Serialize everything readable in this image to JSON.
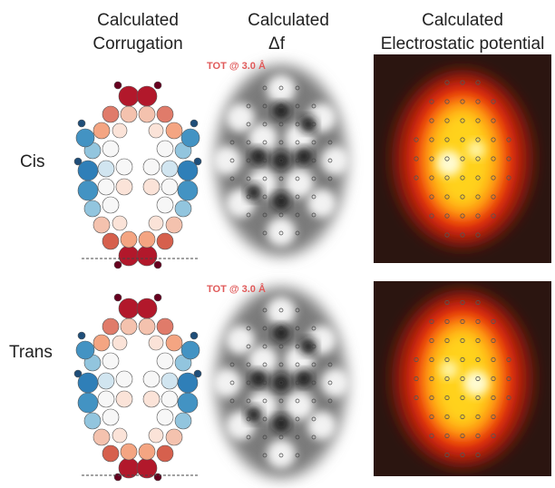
{
  "header": {
    "columns": [
      {
        "line1": "Calculated",
        "line2": "Corrugation"
      },
      {
        "line1": "Calculated",
        "line2": "Δf"
      },
      {
        "line1": "Calculated",
        "line2": "Electrostatic potential"
      }
    ]
  },
  "rows": [
    {
      "label": "Cis",
      "annotation": "TOT @ 3.0 Å"
    },
    {
      "label": "Trans",
      "annotation": "TOT @ 3.0 Å"
    }
  ]
}
